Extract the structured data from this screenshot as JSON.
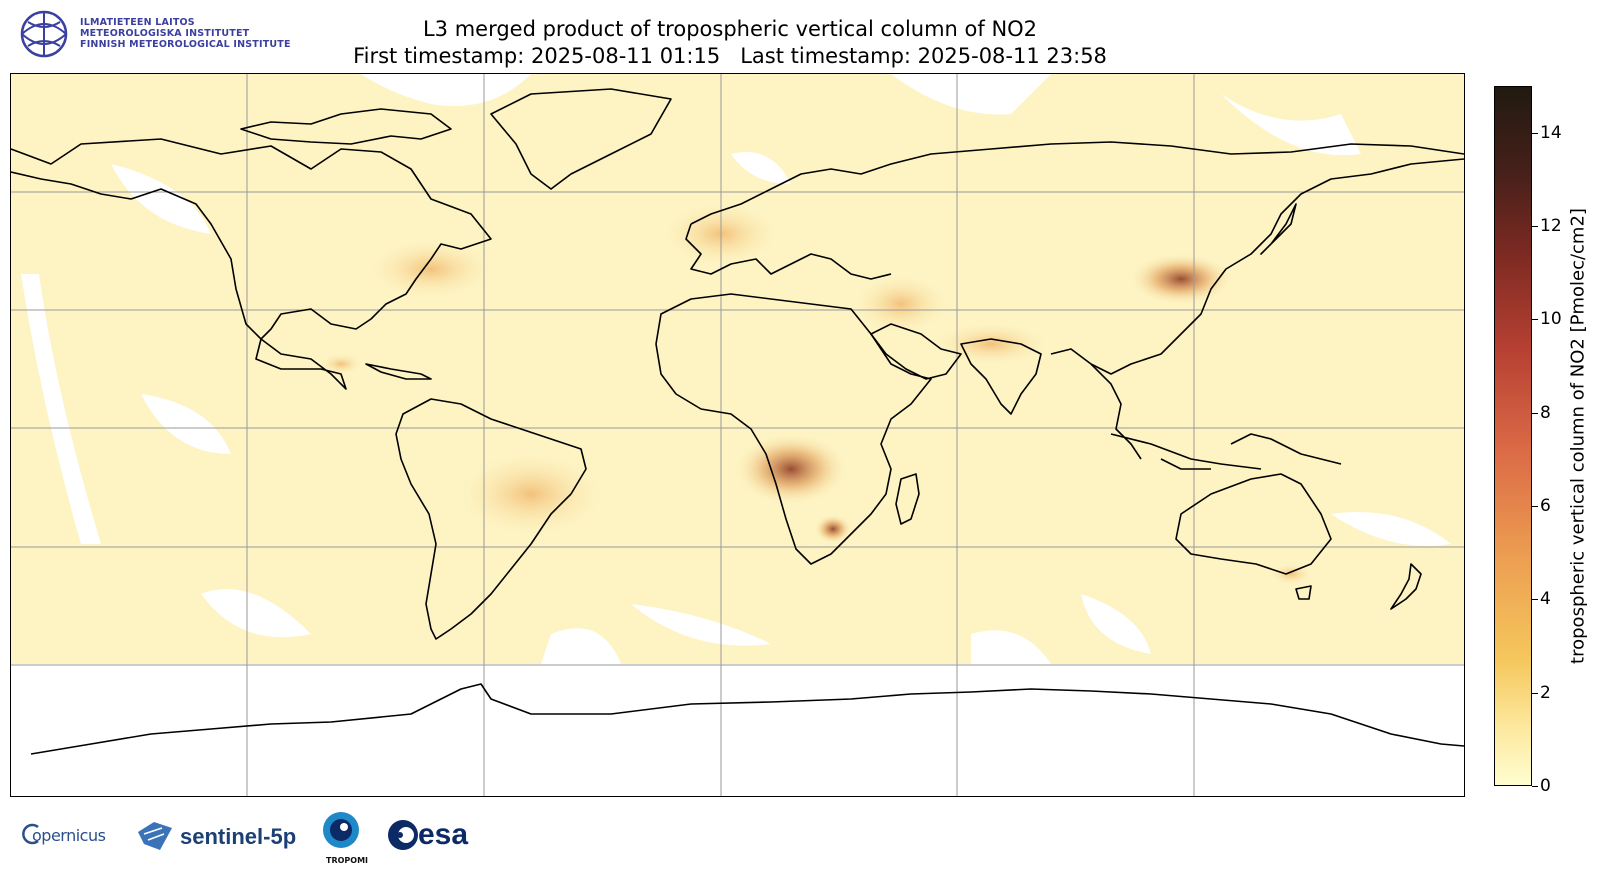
{
  "header": {
    "institute_lines": [
      "ILMATIETEEN LAITOS",
      "METEOROLOGISKA INSTITUTET",
      "FINNISH METEOROLOGICAL INSTITUTE"
    ],
    "title_line1": "L3 merged product of tropospheric vertical column of NO2",
    "title_line2": "First timestamp: 2025-08-11 01:15   Last timestamp: 2025-08-11 23:58"
  },
  "map": {
    "projection": "plate-carree",
    "gridlines": true,
    "gridline_color": "#9a9a9a",
    "coastline_color": "#000000",
    "colormap": "yellow-orange-red-dark"
  },
  "colorbar": {
    "label": "tropospheric vertical column of NO2 [Pmolec/cm2]",
    "ticks": [
      "0",
      "2",
      "4",
      "6",
      "8",
      "10",
      "12",
      "14"
    ],
    "range": [
      0,
      15
    ]
  },
  "footer": {
    "logos": [
      "Copernicus",
      "sentinel-5p",
      "TROPOMI",
      "esa"
    ],
    "copernicus_label": "opernicus",
    "sentinel_label": "sentinel-5p",
    "tropomi_label": "TROPOMI",
    "esa_label": "esa"
  }
}
